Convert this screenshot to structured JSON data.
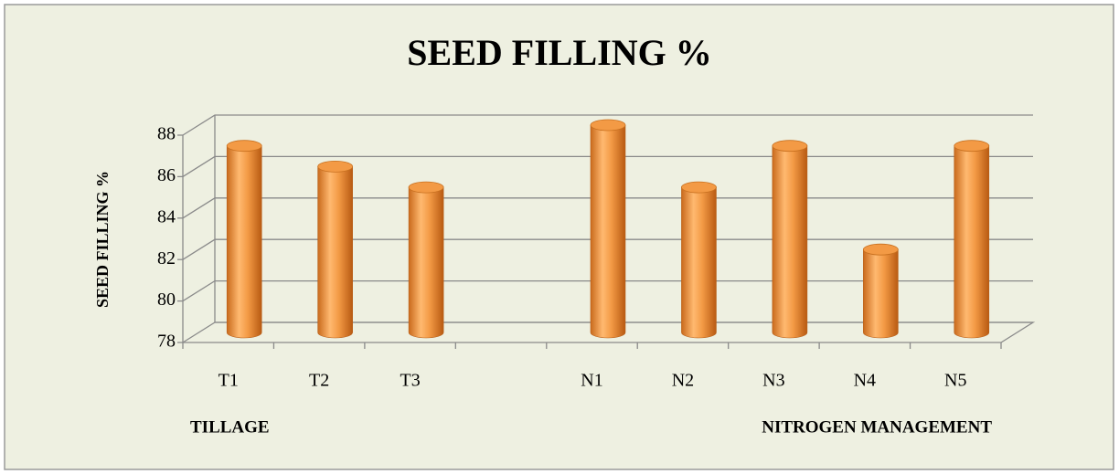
{
  "chart_data": {
    "type": "bar",
    "title": "SEED FILLING %",
    "y_label": "SEED FILLING %",
    "categories": [
      "T1",
      "T2",
      "T3",
      null,
      "N1",
      "N2",
      "N3",
      "N4",
      "N5"
    ],
    "values": [
      87,
      86,
      85,
      null,
      88,
      85,
      87,
      82,
      87
    ],
    "color": "#f39a45",
    "annotations": [
      "TILLAGE",
      "NITROGEN MANAGEMENT"
    ],
    "ylim": [
      78,
      88
    ],
    "yticks": [
      78,
      80,
      82,
      84,
      86,
      88
    ],
    "grid": true
  }
}
